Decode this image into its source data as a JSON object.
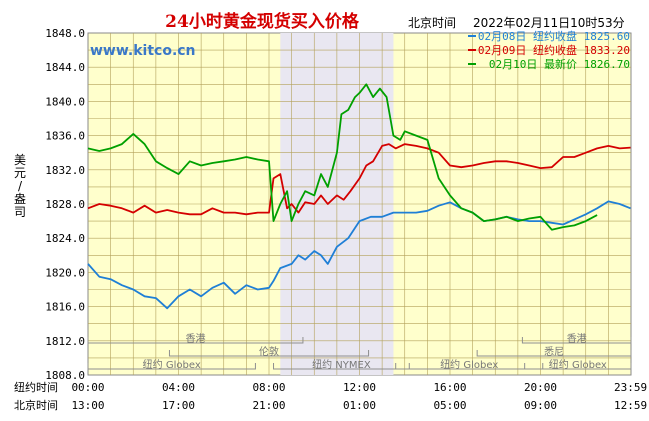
{
  "chart_data": {
    "type": "line",
    "title": "24小时黄金现货买入价格",
    "beijing_time_label": "北京时间",
    "timestamp": "2022年02月11日10时53分",
    "site": "www.kitco.cn",
    "ylabel": [
      "美",
      "元",
      "/",
      "盎",
      "司"
    ],
    "ylim": [
      1808.0,
      1848.0
    ],
    "y_ticks": [
      "1848.0",
      "1844.0",
      "1840.0",
      "1836.0",
      "1832.0",
      "1828.0",
      "1824.0",
      "1820.0",
      "1816.0",
      "1812.0",
      "1808.0"
    ],
    "x_hours": [
      0,
      4,
      8,
      12,
      16,
      20,
      23.98
    ],
    "x_row_label_ny": "纽约时间",
    "x_ticks_ny": [
      "00:00",
      "04:00",
      "08:00",
      "12:00",
      "16:00",
      "20:00",
      "23:59"
    ],
    "x_row_label_bj": "北京时间",
    "x_ticks_bj": [
      "13:00",
      "17:00",
      "21:00",
      "01:00",
      "05:00",
      "09:00",
      "12:59"
    ],
    "highlight_hours": [
      8.5,
      13.5
    ],
    "grid": true,
    "legend_position": "top-right",
    "markets": [
      {
        "name": "香港",
        "start": 0,
        "end": 9.5,
        "row": 0
      },
      {
        "name": "香港",
        "start": 19.2,
        "end": 24,
        "row": 0
      },
      {
        "name": "伦敦",
        "start": 3.6,
        "end": 12.4,
        "row": 1
      },
      {
        "name": "悉尼",
        "start": 17.2,
        "end": 24,
        "row": 1
      },
      {
        "name": "纽约 Globex",
        "start": 0,
        "end": 7.4,
        "row": 2
      },
      {
        "name": "纽约 NYMEX",
        "start": 8.2,
        "end": 14.2,
        "row": 2
      },
      {
        "name": "纽约 Globex",
        "start": 13.6,
        "end": 20.1,
        "row": 2
      },
      {
        "name": "纽约 Globex",
        "start": 19.3,
        "end": 24,
        "row": 2
      }
    ],
    "series": [
      {
        "name": "02月08日 纽约收盘 1825.60",
        "color": "#1f7fd6",
        "x": [
          0,
          0.5,
          1.0,
          1.5,
          2.0,
          2.5,
          3.0,
          3.5,
          4.0,
          4.5,
          5.0,
          5.5,
          6.0,
          6.5,
          7.0,
          7.5,
          8.0,
          8.2,
          8.5,
          9.0,
          9.3,
          9.6,
          10.0,
          10.3,
          10.6,
          11.0,
          11.5,
          12.0,
          12.5,
          13.0,
          13.5,
          14.0,
          14.5,
          15.0,
          15.5,
          16.0,
          16.5,
          17.0,
          17.5,
          18.0,
          18.5,
          19.0,
          19.5,
          20.0,
          20.5,
          21.0,
          21.5,
          22.0,
          22.5,
          23.0,
          23.5,
          23.98
        ],
        "values": [
          1821.0,
          1819.5,
          1819.2,
          1818.5,
          1818.0,
          1817.2,
          1817.0,
          1815.8,
          1817.2,
          1818.0,
          1817.2,
          1818.2,
          1818.8,
          1817.5,
          1818.5,
          1818.0,
          1818.2,
          1819.0,
          1820.5,
          1821.0,
          1822.0,
          1821.5,
          1822.5,
          1822.0,
          1821.0,
          1823.0,
          1824.0,
          1826.0,
          1826.5,
          1826.5,
          1827.0,
          1827.0,
          1827.0,
          1827.2,
          1827.8,
          1828.2,
          1827.5,
          1827.0,
          1826.0,
          1826.2,
          1826.5,
          1826.2,
          1826.0,
          1826.0,
          1825.8,
          1825.6,
          1826.2,
          1826.8,
          1827.5,
          1828.3,
          1828.0,
          1827.5
        ]
      },
      {
        "name": "02月09日 纽约收盘 1833.20",
        "color": "#d40000",
        "x": [
          0,
          0.5,
          1.0,
          1.5,
          2.0,
          2.5,
          3.0,
          3.5,
          4.0,
          4.5,
          5.0,
          5.5,
          6.0,
          6.5,
          7.0,
          7.5,
          8.0,
          8.2,
          8.5,
          8.8,
          9.0,
          9.3,
          9.6,
          10.0,
          10.3,
          10.6,
          11.0,
          11.3,
          11.6,
          12.0,
          12.3,
          12.6,
          13.0,
          13.3,
          13.6,
          14.0,
          14.5,
          15.0,
          15.5,
          16.0,
          16.5,
          17.0,
          17.5,
          18.0,
          18.5,
          19.0,
          19.5,
          20.0,
          20.5,
          21.0,
          21.5,
          22.0,
          22.5,
          23.0,
          23.5,
          23.98
        ],
        "values": [
          1827.5,
          1828.0,
          1827.8,
          1827.5,
          1827.0,
          1827.8,
          1827.0,
          1827.3,
          1827.0,
          1826.8,
          1826.8,
          1827.5,
          1827.0,
          1827.0,
          1826.8,
          1827.0,
          1827.0,
          1831.0,
          1831.5,
          1827.5,
          1828.0,
          1827.0,
          1828.2,
          1828.0,
          1829.0,
          1828.0,
          1829.0,
          1828.5,
          1829.5,
          1831.0,
          1832.5,
          1833.0,
          1834.8,
          1835.0,
          1834.5,
          1835.0,
          1834.8,
          1834.5,
          1834.0,
          1832.5,
          1832.3,
          1832.5,
          1832.8,
          1833.0,
          1833.0,
          1832.8,
          1832.5,
          1832.2,
          1832.3,
          1833.5,
          1833.5,
          1834.0,
          1834.5,
          1834.8,
          1834.5,
          1834.6
        ]
      },
      {
        "name": "02月10日 最新价 1826.70",
        "color": "#00a000",
        "x": [
          0,
          0.5,
          1.0,
          1.5,
          2.0,
          2.5,
          3.0,
          3.5,
          4.0,
          4.5,
          5.0,
          5.5,
          6.0,
          6.5,
          7.0,
          7.5,
          8.0,
          8.2,
          8.5,
          8.8,
          9.0,
          9.3,
          9.6,
          10.0,
          10.3,
          10.6,
          11.0,
          11.2,
          11.5,
          11.8,
          12.0,
          12.3,
          12.6,
          12.9,
          13.2,
          13.5,
          13.8,
          14.0,
          14.5,
          15.0,
          15.5,
          16.0,
          16.5,
          17.0,
          17.5,
          18.0,
          18.5,
          19.0,
          19.5,
          20.0,
          20.5,
          21.0,
          21.5,
          22.0,
          22.5
        ],
        "values": [
          1834.5,
          1834.2,
          1834.5,
          1835.0,
          1836.2,
          1835.0,
          1833.0,
          1832.2,
          1831.5,
          1833.0,
          1832.5,
          1832.8,
          1833.0,
          1833.2,
          1833.5,
          1833.2,
          1833.0,
          1826.0,
          1828.0,
          1829.5,
          1826.0,
          1828.0,
          1829.5,
          1829.0,
          1831.5,
          1830.0,
          1834.0,
          1838.5,
          1839.0,
          1840.5,
          1841.0,
          1842.0,
          1840.5,
          1841.5,
          1840.5,
          1836.0,
          1835.5,
          1836.5,
          1836.0,
          1835.5,
          1831.0,
          1829.0,
          1827.5,
          1827.0,
          1826.0,
          1826.2,
          1826.5,
          1826.0,
          1826.3,
          1826.5,
          1825.0,
          1825.3,
          1825.5,
          1826.0,
          1826.7
        ]
      }
    ]
  }
}
